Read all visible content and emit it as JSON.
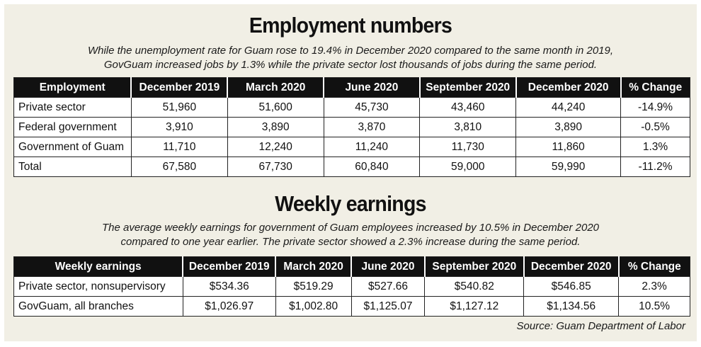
{
  "chart_data": [
    {
      "type": "table",
      "title": "Employment numbers",
      "subtitle": [
        "While the unemployment rate for Guam rose to 19.4% in December 2020 compared to the same month in 2019,",
        "GovGuam increased jobs by 1.3% while the private sector lost thousands of jobs during the same period."
      ],
      "columns": [
        "Employment",
        "December 2019",
        "March 2020",
        "June 2020",
        "September 2020",
        "December 2020",
        "% Change"
      ],
      "rows": [
        [
          "Private sector",
          "51,960",
          "51,600",
          "45,730",
          "43,460",
          "44,240",
          "-14.9%"
        ],
        [
          "Federal government",
          "3,910",
          "3,890",
          "3,870",
          "3,810",
          "3,890",
          "-0.5%"
        ],
        [
          "Government of Guam",
          "11,710",
          "12,240",
          "11,240",
          "11,730",
          "11,860",
          "1.3%"
        ],
        [
          "Total",
          "67,580",
          "67,730",
          "60,840",
          "59,000",
          "59,990",
          "-11.2%"
        ]
      ]
    },
    {
      "type": "table",
      "title": "Weekly earnings",
      "subtitle": [
        "The average weekly earnings for government of Guam employees increased by 10.5% in December 2020",
        "compared to one year earlier.  The private sector showed a 2.3% increase during the same period."
      ],
      "columns": [
        "Weekly earnings",
        "December 2019",
        "March 2020",
        "June 2020",
        "September 2020",
        "December 2020",
        "% Change"
      ],
      "rows": [
        [
          "Private sector, nonsupervisory",
          "$534.36",
          "$519.29",
          "$527.66",
          "$540.82",
          "$546.85",
          "2.3%"
        ],
        [
          "GovGuam, all branches",
          "$1,026.97",
          "$1,002.80",
          "$1,125.07",
          "$1,127.12",
          "$1,134.56",
          "10.5%"
        ]
      ]
    }
  ],
  "source": "Source: Guam Department of Labor"
}
